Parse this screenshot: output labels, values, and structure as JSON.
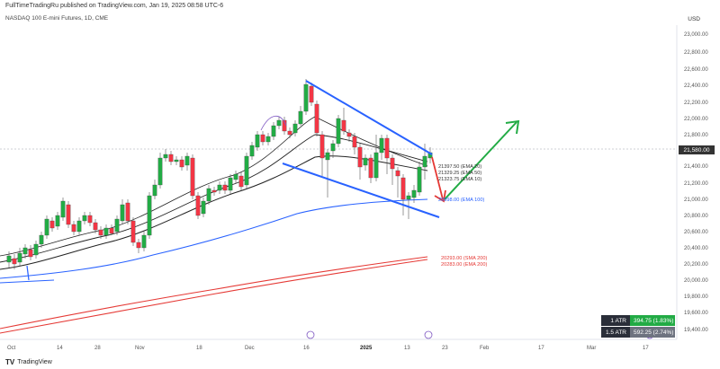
{
  "header": {
    "published": "FullTimeTradingRu published on TradingView.com, Jan 19, 2025 08:58 UTC-6",
    "symbol": "NASDAQ 100 E-mini Futures, 1D, CME",
    "currency": "USD"
  },
  "price_axis": {
    "labels": [
      "23,000.00",
      "22,800.00",
      "22,600.00",
      "22,400.00",
      "22,200.00",
      "22,000.00",
      "21,800.00",
      "21,400.00",
      "21,200.00",
      "21,000.00",
      "20,800.00",
      "20,600.00",
      "20,400.00",
      "20,200.00",
      "20,000.00",
      "19,800.00",
      "19,600.00",
      "19,400.00"
    ],
    "current_price": "21,580.00"
  },
  "time_axis": {
    "labels": [
      "Oct",
      "14",
      "28",
      "Nov",
      "18",
      "Dec",
      "16",
      "2025",
      "13",
      "Feb",
      "17",
      "Mar",
      "17"
    ],
    "bold": "2025",
    "hidden": [
      "23"
    ]
  },
  "annotations": {
    "ema20": "21397.50 (EMA 20)",
    "ema50": "21329.25 (EMA 50)",
    "ema10": "21323.75 (EMA 10)",
    "ema100": "20998.00 (EMA 100)",
    "sma200": "20293.00 (SMA 200)",
    "ema200": "20283.00 (EMA 200)"
  },
  "atr": [
    {
      "label": "1 ATR",
      "value": "394.75 (1.83%)",
      "color": "#22ab45"
    },
    {
      "label": "1.5 ATR",
      "value": "592.25 (2.74%)",
      "color": "#6e7380"
    }
  ],
  "branding": {
    "name": "TradingView",
    "mark": "TV"
  },
  "colors": {
    "up": "#22ab45",
    "down": "#f23645",
    "channel": "#2962ff",
    "ema100": "#2962ff",
    "ema200": "#e53935",
    "forecast_up": "#22ab45",
    "forecast_down": "#e53935"
  }
}
